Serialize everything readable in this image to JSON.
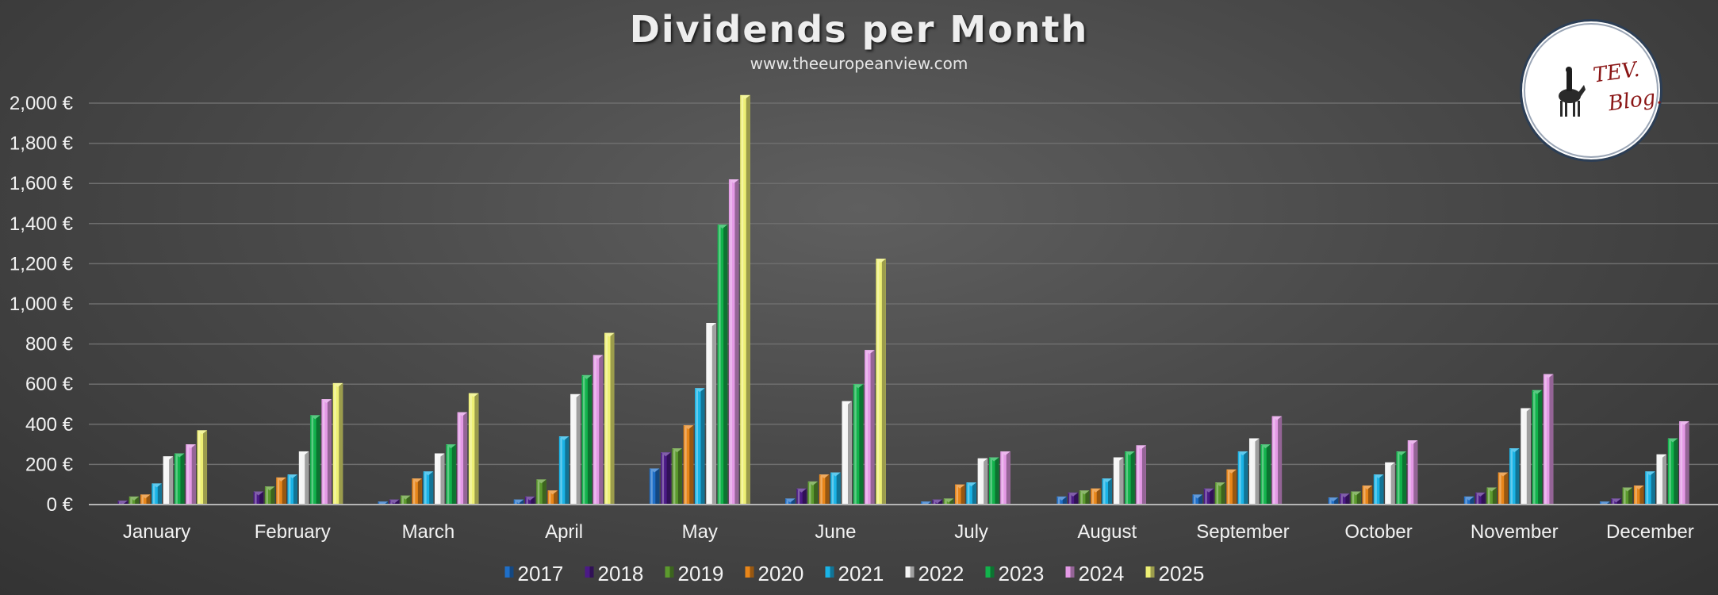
{
  "chart_data": {
    "type": "bar",
    "title": "Dividends per Month",
    "subtitle": "www.theeuropeanview.com",
    "xlabel": "",
    "ylabel": "",
    "ylim": [
      0,
      2000
    ],
    "yticks": [
      0,
      200,
      400,
      600,
      800,
      1000,
      1200,
      1400,
      1600,
      1800,
      2000
    ],
    "ytick_labels": [
      "0 €",
      "200 €",
      "400 €",
      "600 €",
      "800 €",
      "1,000 €",
      "1,200 €",
      "1,400 €",
      "1,600 €",
      "1,800 €",
      "2,000 €"
    ],
    "grid": true,
    "legend_position": "bottom",
    "categories": [
      "January",
      "February",
      "March",
      "April",
      "May",
      "June",
      "July",
      "August",
      "September",
      "October",
      "November",
      "December"
    ],
    "series": [
      {
        "name": "2017",
        "color": "#1f6fc8",
        "values": [
          0,
          0,
          15,
          25,
          180,
          30,
          15,
          40,
          50,
          35,
          40,
          15
        ]
      },
      {
        "name": "2018",
        "color": "#4b1a86",
        "values": [
          20,
          65,
          25,
          40,
          260,
          80,
          25,
          60,
          80,
          55,
          60,
          30
        ]
      },
      {
        "name": "2019",
        "color": "#5c9a2e",
        "values": [
          40,
          90,
          45,
          125,
          280,
          115,
          30,
          70,
          110,
          65,
          85,
          85
        ]
      },
      {
        "name": "2020",
        "color": "#e8861a",
        "values": [
          50,
          135,
          130,
          70,
          395,
          150,
          100,
          80,
          175,
          95,
          160,
          95
        ]
      },
      {
        "name": "2021",
        "color": "#1ab3e6",
        "values": [
          105,
          150,
          165,
          340,
          580,
          160,
          110,
          130,
          265,
          150,
          280,
          165
        ]
      },
      {
        "name": "2022",
        "color": "#f5f5f5",
        "values": [
          240,
          265,
          255,
          550,
          905,
          515,
          230,
          235,
          330,
          210,
          480,
          250
        ]
      },
      {
        "name": "2023",
        "color": "#12b34c",
        "values": [
          255,
          445,
          300,
          645,
          1395,
          600,
          235,
          265,
          300,
          265,
          570,
          330
        ]
      },
      {
        "name": "2024",
        "color": "#e49ae6",
        "values": [
          300,
          525,
          460,
          745,
          1620,
          770,
          265,
          295,
          440,
          320,
          650,
          415
        ]
      },
      {
        "name": "2025",
        "color": "#eef075",
        "values": [
          370,
          605,
          555,
          855,
          2040,
          1225,
          0,
          0,
          0,
          0,
          0,
          0
        ]
      }
    ]
  },
  "logo": {
    "text_line1": "TEV.",
    "text_line2": "Blog."
  }
}
